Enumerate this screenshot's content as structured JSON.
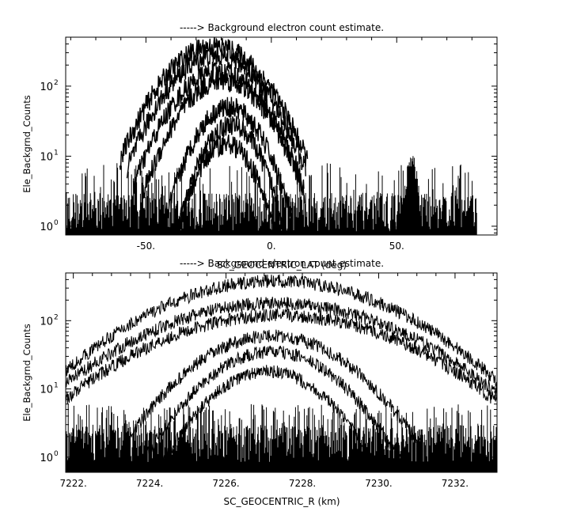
{
  "chart_data": [
    {
      "type": "line",
      "title": "-----> Background electron count estimate.",
      "xlabel": "SC_GEOCENTRIC_LAT (deg)",
      "ylabel": "Ele_Backgrnd_Counts",
      "xlim": [
        -82,
        90
      ],
      "ylim": [
        0.75,
        500
      ],
      "yscale": "log",
      "xticks_major": [
        -50,
        0,
        50
      ],
      "xtick_labels": [
        "-50.",
        "0.",
        "50."
      ],
      "xticks_minor_step": 10,
      "yticks": [
        1,
        10,
        100
      ],
      "ytick_labels": [
        "10",
        "10",
        "10"
      ],
      "ytick_exponents": [
        "0",
        "1",
        "2"
      ],
      "noise_floor": {
        "x_range": [
          -82,
          82
        ],
        "y_range": [
          0.85,
          3
        ],
        "y_high": 8
      },
      "series": [
        {
          "center": -23,
          "width": 22,
          "peak": 370
        },
        {
          "center": -22,
          "width": 21,
          "peak": 270
        },
        {
          "center": -21,
          "width": 20,
          "peak": 160
        },
        {
          "center": -19,
          "width": 19,
          "peak": 120
        },
        {
          "center": -17,
          "width": 15,
          "peak": 50
        },
        {
          "center": -16,
          "width": 13,
          "peak": 28
        },
        {
          "center": -18,
          "width": 13,
          "peak": 15
        }
      ],
      "secondary_spike": {
        "center": 56,
        "width": 4,
        "peak": 8
      }
    },
    {
      "type": "line",
      "title": "-----> Background electron count estimate.",
      "xlabel": "SC_GEOCENTRIC_R (km)",
      "ylabel": "Ele_Backgrnd_Counts",
      "xlim": [
        7221.8,
        7233.1
      ],
      "ylim": [
        0.6,
        500
      ],
      "yscale": "log",
      "xticks_major": [
        7222,
        7224,
        7226,
        7228,
        7230,
        7232
      ],
      "xtick_labels": [
        "7222.",
        "7224.",
        "7226.",
        "7228.",
        "7230.",
        "7232."
      ],
      "xticks_minor_step": 0.5,
      "yticks": [
        1,
        10,
        100
      ],
      "ytick_labels": [
        "10",
        "10",
        "10"
      ],
      "ytick_exponents": [
        "0",
        "1",
        "2"
      ],
      "noise_floor": {
        "x_range": [
          7221.8,
          7233.1
        ],
        "y_range": [
          0.85,
          3
        ],
        "y_high": 6
      },
      "series": [
        {
          "center": 7227.3,
          "width": 3.6,
          "peak": 380
        },
        {
          "center": 7227.3,
          "width": 3.8,
          "peak": 180
        },
        {
          "center": 7227.4,
          "width": 3.8,
          "peak": 120
        },
        {
          "center": 7227.2,
          "width": 2.3,
          "peak": 60
        },
        {
          "center": 7227.2,
          "width": 2.0,
          "peak": 35
        },
        {
          "center": 7227.1,
          "width": 1.8,
          "peak": 18
        }
      ]
    }
  ]
}
